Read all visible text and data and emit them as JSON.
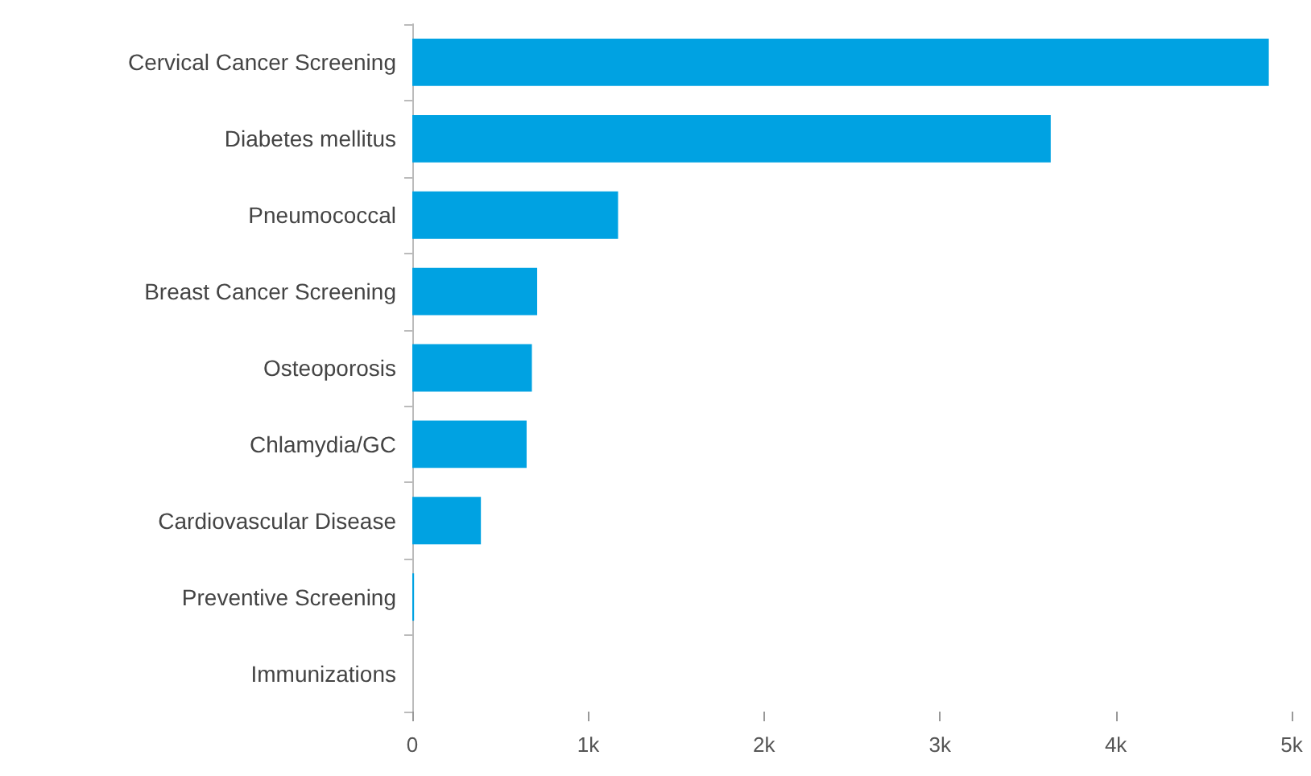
{
  "chart_data": {
    "type": "bar",
    "orientation": "horizontal",
    "categories": [
      "Cervical Cancer Screening",
      "Diabetes mellitus",
      "Pneumococcal",
      "Breast Cancer Screening",
      "Osteoporosis",
      "Chlamydia/GC",
      "Cardiovascular Disease",
      "Preventive Screening",
      "Immunizations"
    ],
    "values": [
      4870,
      3630,
      1170,
      710,
      680,
      650,
      390,
      10,
      0
    ],
    "color": "#00a2e2",
    "xlim": [
      0,
      5000
    ],
    "xticks": [
      0,
      {
        "value": 1000,
        "label": "1k"
      },
      {
        "value": 2000,
        "label": "2k"
      },
      {
        "value": 3000,
        "label": "3k"
      },
      {
        "value": 4000,
        "label": "4k"
      },
      {
        "value": 5000,
        "label": "5k"
      }
    ],
    "grid": false
  }
}
